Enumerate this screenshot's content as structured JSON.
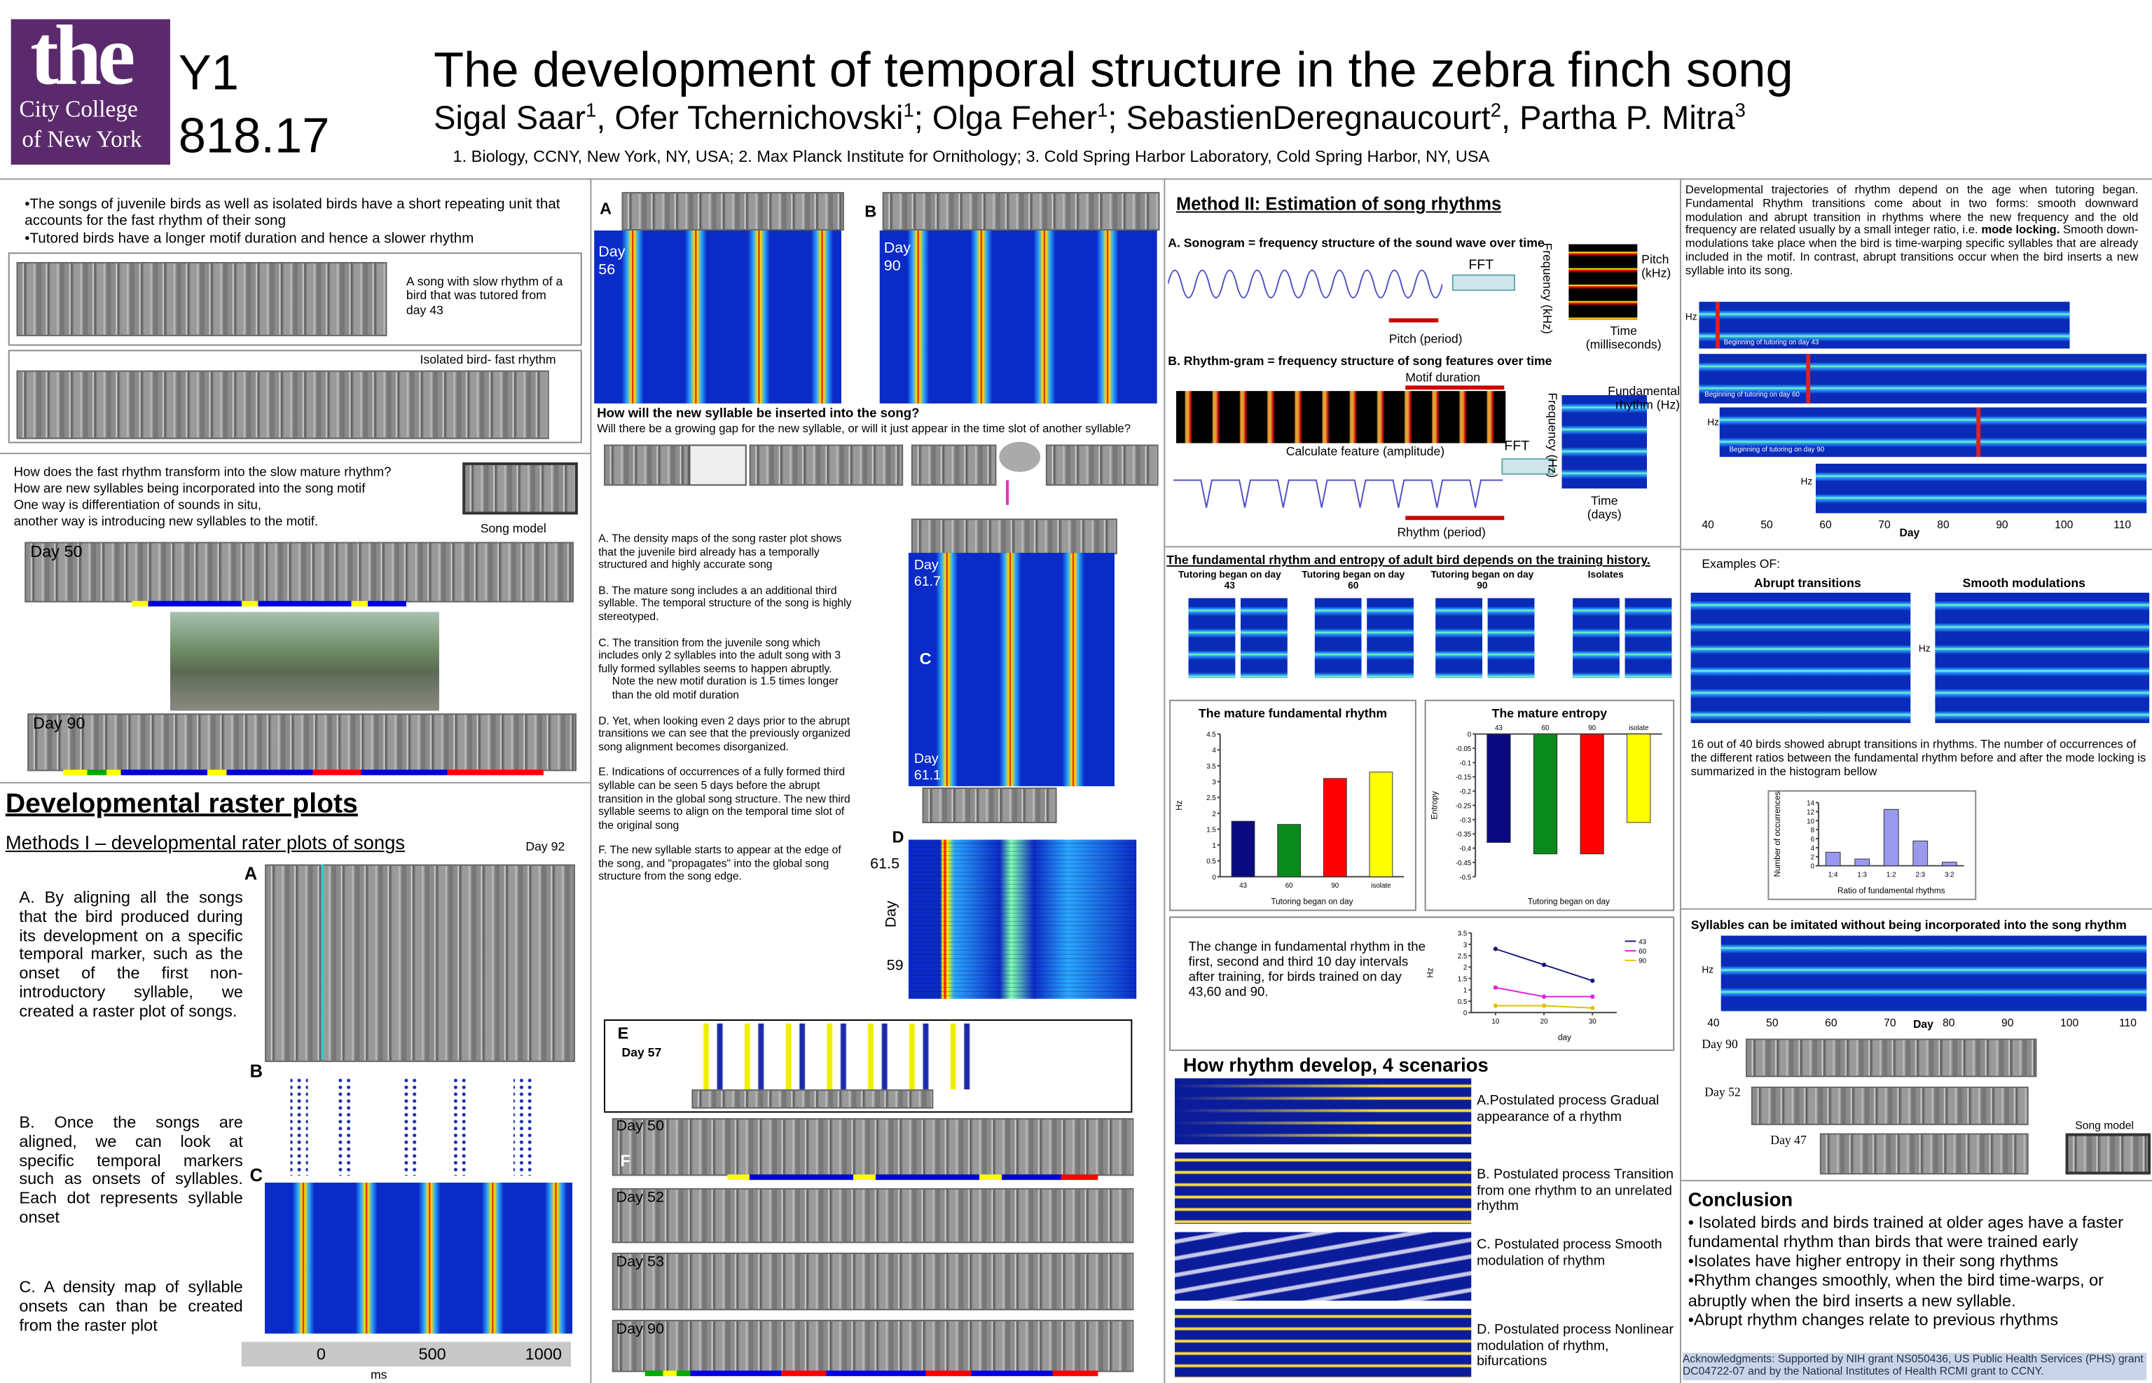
{
  "header": {
    "logo": [
      "the",
      "City College",
      "of New York"
    ],
    "poster_id": [
      "Y1",
      "818.17"
    ],
    "title": "The development of temporal structure in the zebra finch song",
    "authors": [
      {
        "name": "Sigal Saar",
        "sup": "1"
      },
      {
        "name": ", Ofer Tchernichovski",
        "sup": "1"
      },
      {
        "name": "; Olga Feher",
        "sup": "1"
      },
      {
        "name": "; SebastienDeregnaucourt",
        "sup": "2"
      },
      {
        "name": ", Partha P. Mitra",
        "sup": "3"
      }
    ],
    "affiliations": "1. Biology, CCNY, New York, NY, USA; 2. Max Planck Institute for Ornithology; 3. Cold Spring Harbor Laboratory, Cold Spring Harbor, NY, USA"
  },
  "col1": {
    "bullets": [
      "•The songs of juvenile birds as well as isolated birds have a short repeating unit that accounts for the fast rhythm of their song",
      "•Tutored birds have a longer motif duration and hence a slower rhythm"
    ],
    "slow_caption": "A song with slow rhythm of a bird that was tutored from day 43",
    "fast_caption": "Isolated bird- fast rhythm",
    "questions": [
      "How does the fast rhythm transform into the slow mature rhythm?",
      "How are new syllables being incorporated into the song motif",
      "One way is differentiation of sounds in situ,",
      "another way is introducing new syllables to the motif."
    ],
    "song_model": "Song model",
    "day50": "Day 50",
    "day90": "Day 90",
    "section": "Developmental raster plots",
    "methods": "Methods I – developmental rater plots of songs",
    "day92": "Day 92",
    "paragraphs": [
      "A. By aligning all the songs that the bird produced during its development on a specific temporal marker, such as the onset of the first non-introductory syllable, we created a raster plot of songs.",
      "B. Once the songs are aligned, we can look at specific temporal markers such as onsets of syllables. Each dot represents syllable onset",
      "C. A density map of syllable onsets can than be created from the raster plot"
    ],
    "letters": [
      "A",
      "B",
      "C"
    ],
    "ms_ticks": [
      0,
      500,
      1000
    ],
    "ms": "ms"
  },
  "col2": {
    "a": "A",
    "b": "B",
    "day56": "Day 56",
    "day90": "Day 90",
    "question": "How will the new syllable be inserted into the song?",
    "subquestion": "Will there be a growing gap for the new syllable, or will it just appear in the time slot of another syllable?",
    "notes": [
      "A. The density maps of the song raster plot shows that the juvenile bird already has a temporally structured and highly accurate song",
      "B. The mature song includes a an additional third syllable. The temporal structure of the song is highly stereotyped.",
      "C. The transition from the juvenile song which includes only 2 syllables into the adult song with 3 fully formed syllables seems to happen abruptly.",
      "Note the new motif duration is 1.5 times longer than the old motif duration",
      "D. Yet, when looking even 2 days prior to the abrupt transitions we can see that the previously organized song alignment becomes disorganized.",
      "E. Indications of occurrences of a fully formed third syllable can be seen 5 days before the abrupt transition in the global song structure. The new third syllable seems to align on the temporal time slot of the original song",
      "F. The new syllable starts to appear at the edge of the song, and \"propagates\" into the global song structure from the song edge."
    ],
    "day617": "Day 61.7",
    "c": "C",
    "day611": "Day 61.1",
    "d": "D",
    "d_top": "61.5",
    "d_axis": "Day",
    "d_bottom": "59",
    "e": "E",
    "day57": "Day 57",
    "f": "F",
    "sonos": [
      "Day 50",
      "Day 52",
      "Day 53",
      "Day 90"
    ]
  },
  "col3": {
    "method": "Method II: Estimation of song rhythms",
    "a_title": "A. Sonogram = frequency structure of the sound wave over time",
    "fft": "FFT",
    "freq_khz": "Frequency (kHz)",
    "pitch_khz": "Pitch (kHz)",
    "time_ms": "Time (milliseconds)",
    "pitch_period": "Pitch (period)",
    "b_title": "B. Rhythm-gram = frequency structure of song features over time",
    "motif": "Motif duration",
    "calc": "Calculate feature (amplitude)",
    "fft2": "FFT",
    "freq_hz": "Frequency (Hz)",
    "fund": "Fundamental rhythm (Hz)",
    "time_days": "Time (days)",
    "rhythm_period": "Rhythm (period)",
    "entropy_title": "The fundamental rhythm and entropy of adult bird depends on the training history.",
    "groups": [
      "Tutoring began on day 43",
      "Tutoring began on day 60",
      "Tutoring began on day 90",
      "Isolates"
    ],
    "change_text": "The change in fundamental rhythm in the first, second and third 10 day intervals after training, for birds trained on day 43,60 and 90.",
    "scenarios_title": "How rhythm develop, 4 scenarios",
    "scenarios": [
      "A.Postulated process Gradual appearance of a rhythm",
      "B. Postulated process Transition from one rhythm to an unrelated rhythm",
      "C. Postulated process Smooth modulation of rhythm",
      "D. Postulated process Nonlinear modulation of rhythm, bifurcations"
    ]
  },
  "col4": {
    "intro": [
      "Developmental trajectories of rhythm depend on the age when tutoring began. Fundamental Rhythm transitions come about in two forms: smooth downward modulation and abrupt transition in rhythms where the new frequency and the old frequency are related usually by a small integer ratio, i.e. ",
      "mode locking.",
      " Smooth down-modulations take place when the bird is time-warping specific syllables that are already included in the motif. In contrast, abrupt transitions occur when the bird inserts a new syllable into its song."
    ],
    "strip_labels": [
      "Beginning of tutoring on day 43",
      "Beginning of tutoring on day 60",
      "Beginning of tutoring on day 90"
    ],
    "day_ticks": [
      40,
      50,
      60,
      70,
      80,
      90,
      100,
      110
    ],
    "day": "Day",
    "hz": "Hz",
    "examples": "Examples OF:",
    "abrupt": "Abrupt transitions",
    "smooth": "Smooth modulations",
    "count_text": "16 out of 40 birds showed abrupt transitions in rhythms. The number of occurrences of the different ratios between the fundamental rhythm before and after the mode locking is summarized in the histogram bellow",
    "imitate": "Syllables can be imitated without being incorporated into the song rhythm",
    "days": [
      "Day 90",
      "Day 52",
      "Day 47"
    ],
    "song_model": "Song model",
    "conclusion": "Conclusion",
    "conclusions": [
      "• Isolated birds and birds trained at older ages have a faster fundamental rhythm than birds that were trained early",
      "•Isolates have  higher entropy in their song rhythms",
      "•Rhythm changes smoothly, when the bird time-warps, or abruptly when the bird inserts a  new syllable.",
      "•Abrupt rhythm changes relate to previous rhythms"
    ],
    "ack": "Acknowledgments: Supported by NIH grant NS050436, US Public Health Services (PHS) grant DC04722-07 and by the National Institutes of Health RCMI grant to CCNY."
  },
  "chart_data": [
    {
      "type": "bar",
      "title": "The mature fundamental rhythm",
      "xlabel": "Tutoring began on day",
      "ylabel": "Hz",
      "categories": [
        "43",
        "60",
        "90",
        "isolate"
      ],
      "values": [
        1.75,
        1.65,
        3.1,
        3.3
      ],
      "colors": [
        "#0a0a80",
        "#0a8a1a",
        "#ff0000",
        "#ffff00"
      ],
      "ylim": [
        0,
        4.5
      ],
      "yticks": [
        0,
        0.5,
        1,
        1.5,
        2,
        2.5,
        3,
        3.5,
        4,
        4.5
      ]
    },
    {
      "type": "bar",
      "title": "The mature entropy",
      "xlabel": "Tutoring began on day",
      "ylabel": "Entropy",
      "categories": [
        "43",
        "60",
        "90",
        "isolate"
      ],
      "values": [
        -0.38,
        -0.42,
        -0.42,
        -0.31
      ],
      "colors": [
        "#0a0a80",
        "#0a8a1a",
        "#ff0000",
        "#ffff00"
      ],
      "ylim": [
        -0.5,
        0
      ],
      "yticks": [
        0,
        -0.05,
        -0.1,
        -0.15,
        -0.2,
        -0.25,
        -0.3,
        -0.35,
        -0.4,
        -0.45,
        -0.5
      ]
    },
    {
      "type": "line",
      "xlabel": "day",
      "ylabel": "Hz",
      "x": [
        10,
        20,
        30
      ],
      "xlim": [
        5,
        35
      ],
      "xticks": [
        10,
        20,
        30
      ],
      "ylim": [
        0,
        3.5
      ],
      "yticks": [
        0,
        0.5,
        1,
        1.5,
        2,
        2.5,
        3,
        3.5
      ],
      "series": [
        {
          "name": "43",
          "color": "#1a1a7a",
          "values": [
            2.8,
            2.1,
            1.4
          ]
        },
        {
          "name": "60",
          "color": "#e020e0",
          "values": [
            1.1,
            0.7,
            0.7
          ]
        },
        {
          "name": "90",
          "color": "#e0c000",
          "values": [
            0.3,
            0.3,
            0.2
          ]
        }
      ]
    },
    {
      "type": "bar",
      "xlabel": "Ratio of fundamental rhythms",
      "ylabel": "Number of occurrences",
      "categories": [
        "1:4",
        "1:3",
        "1:2",
        "2:3",
        "3:2"
      ],
      "values": [
        3,
        1.5,
        12.5,
        5.5,
        0.8
      ],
      "color": "#9999ee",
      "ylim": [
        0,
        14
      ],
      "yticks": [
        0,
        2,
        4,
        6,
        8,
        10,
        12,
        14
      ]
    }
  ]
}
